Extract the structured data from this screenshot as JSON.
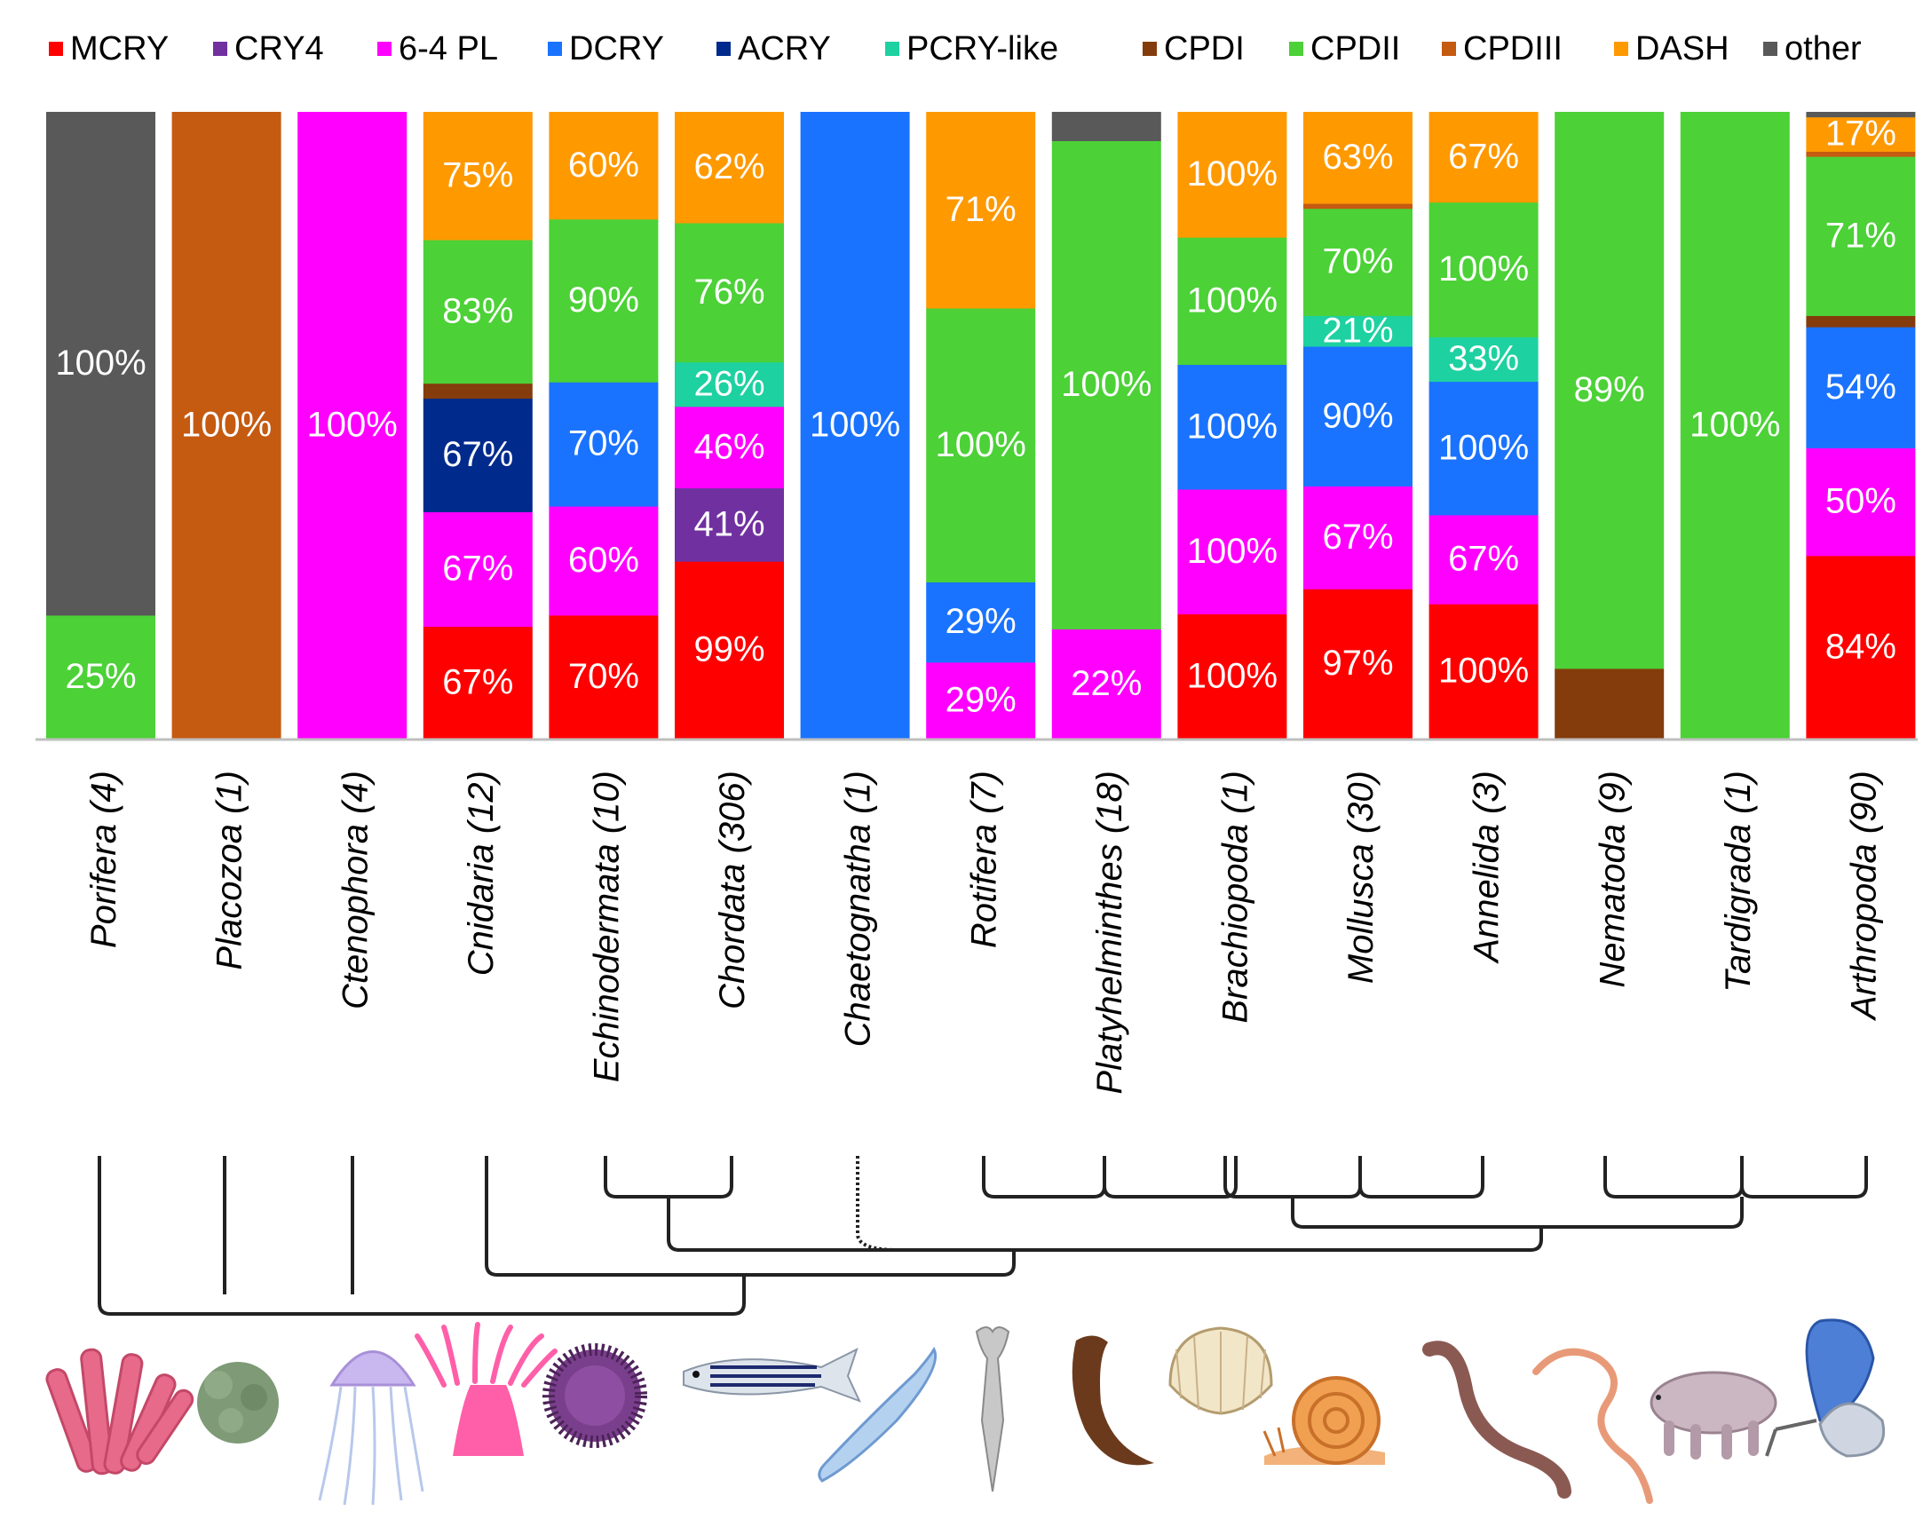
{
  "chart_data": {
    "type": "bar",
    "stacked": true,
    "normalized": true,
    "title": "",
    "xlabel": "",
    "ylabel": "",
    "ylim": [
      0,
      100
    ],
    "grid": false,
    "legend_position": "top",
    "legend": [
      {
        "name": "MCRY",
        "color": "#ff0000"
      },
      {
        "name": "CRY4",
        "color": "#7030a0"
      },
      {
        "name": "6-4 PL",
        "color": "#ff00ff"
      },
      {
        "name": "DCRY",
        "color": "#1a73ff"
      },
      {
        "name": "ACRY",
        "color": "#002a8c"
      },
      {
        "name": "PCRY-like",
        "color": "#1dd1a1"
      },
      {
        "name": "CPDI",
        "color": "#843c0c"
      },
      {
        "name": "CPDII",
        "color": "#4cd137"
      },
      {
        "name": "CPDIII",
        "color": "#c55a11"
      },
      {
        "name": "DASH",
        "color": "#ff9900"
      },
      {
        "name": "other",
        "color": "#595959"
      }
    ],
    "categories": [
      {
        "name": "Porifera",
        "count": "(4)",
        "axis_label": "Porifera (4)",
        "segments": [
          {
            "series": "CPDII",
            "share": 19.7,
            "label": "25%"
          },
          {
            "series": "other",
            "share": 80.3,
            "label": "100%"
          }
        ]
      },
      {
        "name": "Placozoa",
        "count": "(1)",
        "axis_label": "Placozoa (1)",
        "segments": [
          {
            "series": "CPDIII",
            "share": 100,
            "label": "100%"
          }
        ]
      },
      {
        "name": "Ctenophora",
        "count": "(4)",
        "axis_label": "Ctenophora (4)",
        "segments": [
          {
            "series": "6-4 PL",
            "share": 100,
            "label": "100%"
          }
        ]
      },
      {
        "name": "Cnidaria",
        "count": "(12)",
        "axis_label": "Cnidaria (12)",
        "segments": [
          {
            "series": "MCRY",
            "share": 17.9,
            "label": "67%"
          },
          {
            "series": "6-4 PL",
            "share": 18.3,
            "label": "67%"
          },
          {
            "series": "ACRY",
            "share": 18.1,
            "label": "67%"
          },
          {
            "series": "CPDI",
            "share": 2.4,
            "label": ""
          },
          {
            "series": "CPDII",
            "share": 22.9,
            "label": "83%"
          },
          {
            "series": "DASH",
            "share": 20.4,
            "label": "75%"
          }
        ]
      },
      {
        "name": "Echinodermata",
        "count": "(10)",
        "axis_label": "Echinodermata (10)",
        "segments": [
          {
            "series": "MCRY",
            "share": 19.7,
            "label": "70%"
          },
          {
            "series": "6-4 PL",
            "share": 17.4,
            "label": "60%"
          },
          {
            "series": "DCRY",
            "share": 19.8,
            "label": "70%"
          },
          {
            "series": "CPDII",
            "share": 26.0,
            "label": "90%"
          },
          {
            "series": "DASH",
            "share": 17.1,
            "label": "60%"
          }
        ]
      },
      {
        "name": "Chordata",
        "count": "(306)",
        "axis_label": "Chordata (306)",
        "segments": [
          {
            "series": "MCRY",
            "share": 28.3,
            "label": "99%"
          },
          {
            "series": "CRY4",
            "share": 11.7,
            "label": "41%"
          },
          {
            "series": "6-4 PL",
            "share": 13.0,
            "label": "46%"
          },
          {
            "series": "PCRY-like",
            "share": 7.1,
            "label": "26%"
          },
          {
            "series": "CPDII",
            "share": 22.2,
            "label": "76%"
          },
          {
            "series": "DASH",
            "share": 17.7,
            "label": "62%"
          }
        ]
      },
      {
        "name": "Chaetognatha",
        "count": "(1)",
        "axis_label": "Chaetognatha (1)",
        "segments": [
          {
            "series": "DCRY",
            "share": 100,
            "label": "100%"
          }
        ]
      },
      {
        "name": "Rotifera",
        "count": "(7)",
        "axis_label": "Rotifera (7)",
        "segments": [
          {
            "series": "6-4 PL",
            "share": 12.2,
            "label": "29%"
          },
          {
            "series": "DCRY",
            "share": 12.8,
            "label": "29%"
          },
          {
            "series": "CPDII",
            "share": 43.7,
            "label": "100%"
          },
          {
            "series": "DASH",
            "share": 31.3,
            "label": "71%"
          }
        ]
      },
      {
        "name": "Platyhelminthes",
        "count": "(18)",
        "axis_label": "Platyhelminthes (18)",
        "segments": [
          {
            "series": "6-4 PL",
            "share": 17.5,
            "label": "22%"
          },
          {
            "series": "CPDII",
            "share": 77.9,
            "label": "100%"
          },
          {
            "series": "other",
            "share": 4.6,
            "label": ""
          }
        ]
      },
      {
        "name": "Brachiopoda",
        "count": "(1)",
        "axis_label": "Brachiopoda (1)",
        "segments": [
          {
            "series": "MCRY",
            "share": 19.9,
            "label": "100%"
          },
          {
            "series": "6-4 PL",
            "share": 19.9,
            "label": "100%"
          },
          {
            "series": "DCRY",
            "share": 19.9,
            "label": "100%"
          },
          {
            "series": "CPDII",
            "share": 20.3,
            "label": "100%"
          },
          {
            "series": "DASH",
            "share": 20.0,
            "label": "100%"
          }
        ]
      },
      {
        "name": "Mollusca",
        "count": "(30)",
        "axis_label": "Mollusca (30)",
        "segments": [
          {
            "series": "MCRY",
            "share": 23.9,
            "label": "97%"
          },
          {
            "series": "6-4 PL",
            "share": 16.4,
            "label": "67%"
          },
          {
            "series": "DCRY",
            "share": 22.3,
            "label": "90%"
          },
          {
            "series": "PCRY-like",
            "share": 4.9,
            "label": "21%"
          },
          {
            "series": "CPDII",
            "share": 17.1,
            "label": "70%"
          },
          {
            "series": "CPDIII",
            "share": 0.8,
            "label": ""
          },
          {
            "series": "DASH",
            "share": 14.6,
            "label": "63%"
          }
        ]
      },
      {
        "name": "Annelida",
        "count": "(3)",
        "axis_label": "Annelida (3)",
        "segments": [
          {
            "series": "MCRY",
            "share": 21.5,
            "label": "100%"
          },
          {
            "series": "6-4 PL",
            "share": 14.2,
            "label": "67%"
          },
          {
            "series": "DCRY",
            "share": 21.3,
            "label": "100%"
          },
          {
            "series": "PCRY-like",
            "share": 7.1,
            "label": "33%"
          },
          {
            "series": "CPDII",
            "share": 21.5,
            "label": "100%"
          },
          {
            "series": "DASH",
            "share": 14.4,
            "label": "67%"
          }
        ]
      },
      {
        "name": "Nematoda",
        "count": "(9)",
        "axis_label": "Nematoda (9)",
        "segments": [
          {
            "series": "CPDI",
            "share": 11.2,
            "label": ""
          },
          {
            "series": "CPDII",
            "share": 88.8,
            "label": "89%"
          }
        ]
      },
      {
        "name": "Tardigrada",
        "count": "(1)",
        "axis_label": "Tardigrada (1)",
        "segments": [
          {
            "series": "CPDII",
            "share": 100,
            "label": "100%"
          }
        ]
      },
      {
        "name": "Arthropoda",
        "count": "(90)",
        "axis_label": "Arthropoda (90)",
        "segments": [
          {
            "series": "MCRY",
            "share": 29.2,
            "label": "84%"
          },
          {
            "series": "6-4 PL",
            "share": 17.2,
            "label": "50%"
          },
          {
            "series": "DCRY",
            "share": 19.3,
            "label": "54%"
          },
          {
            "series": "CPDI",
            "share": 1.8,
            "label": ""
          },
          {
            "series": "CPDII",
            "share": 25.4,
            "label": "71%"
          },
          {
            "series": "CPDIII",
            "share": 0.8,
            "label": ""
          },
          {
            "series": "DASH",
            "share": 5.5,
            "label": "17%"
          },
          {
            "series": "other",
            "share": 0.8,
            "label": ""
          }
        ]
      }
    ]
  },
  "illustrations": [
    "sponge",
    "placozoan",
    "comb-jelly",
    "sea-anemone",
    "sea-urchin",
    "zebrafish",
    "arrow-worm",
    "rotifer",
    "flatworm",
    "brachiopod-shell",
    "snail",
    "earthworm",
    "roundworm",
    "tardigrade",
    "butterfly"
  ]
}
